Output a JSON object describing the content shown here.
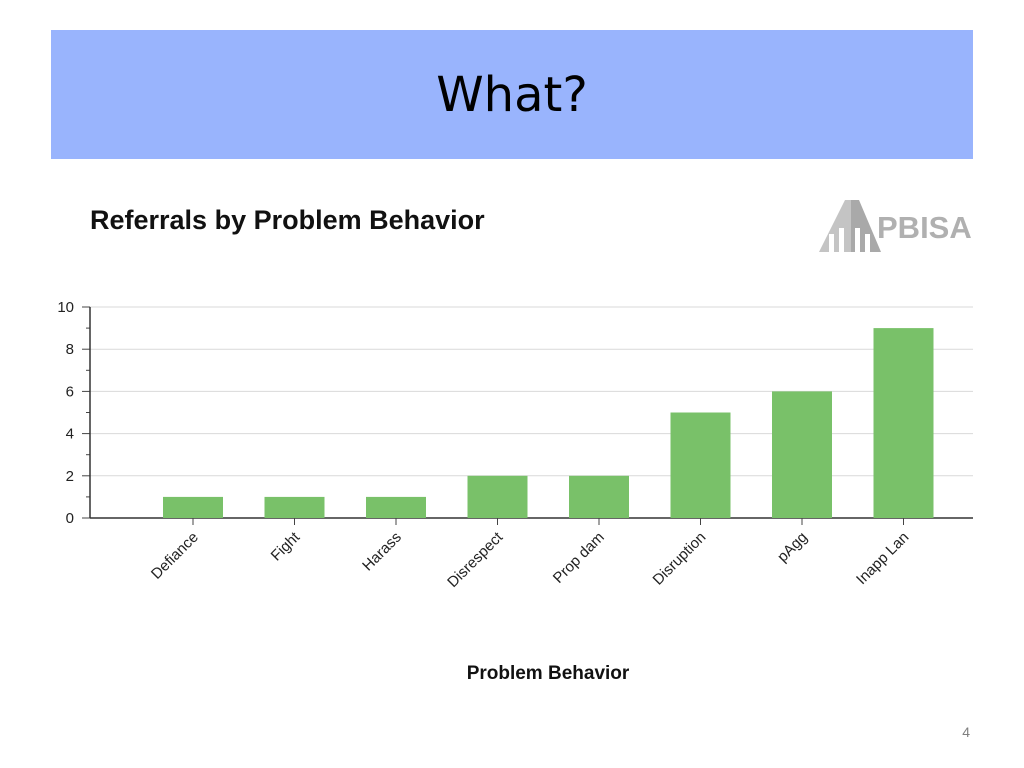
{
  "slide": {
    "title": "What?",
    "page_number": "4",
    "header_color": "#99b4fd"
  },
  "logo": {
    "text": "PBISA"
  },
  "chart_data": {
    "type": "bar",
    "title": "Referrals by Problem Behavior",
    "xlabel": "Problem Behavior",
    "ylabel": "",
    "categories": [
      "Defiance",
      "Fight",
      "Harass",
      "Disrespect",
      "Prop dam",
      "Disruption",
      "pAgg",
      "Inapp Lan"
    ],
    "values": [
      1,
      1,
      1,
      2,
      2,
      5,
      6,
      9
    ],
    "ylim": [
      0,
      10
    ],
    "yticks": [
      0,
      2,
      4,
      6,
      8,
      10
    ],
    "grid": true,
    "bar_color": "#79c169"
  }
}
